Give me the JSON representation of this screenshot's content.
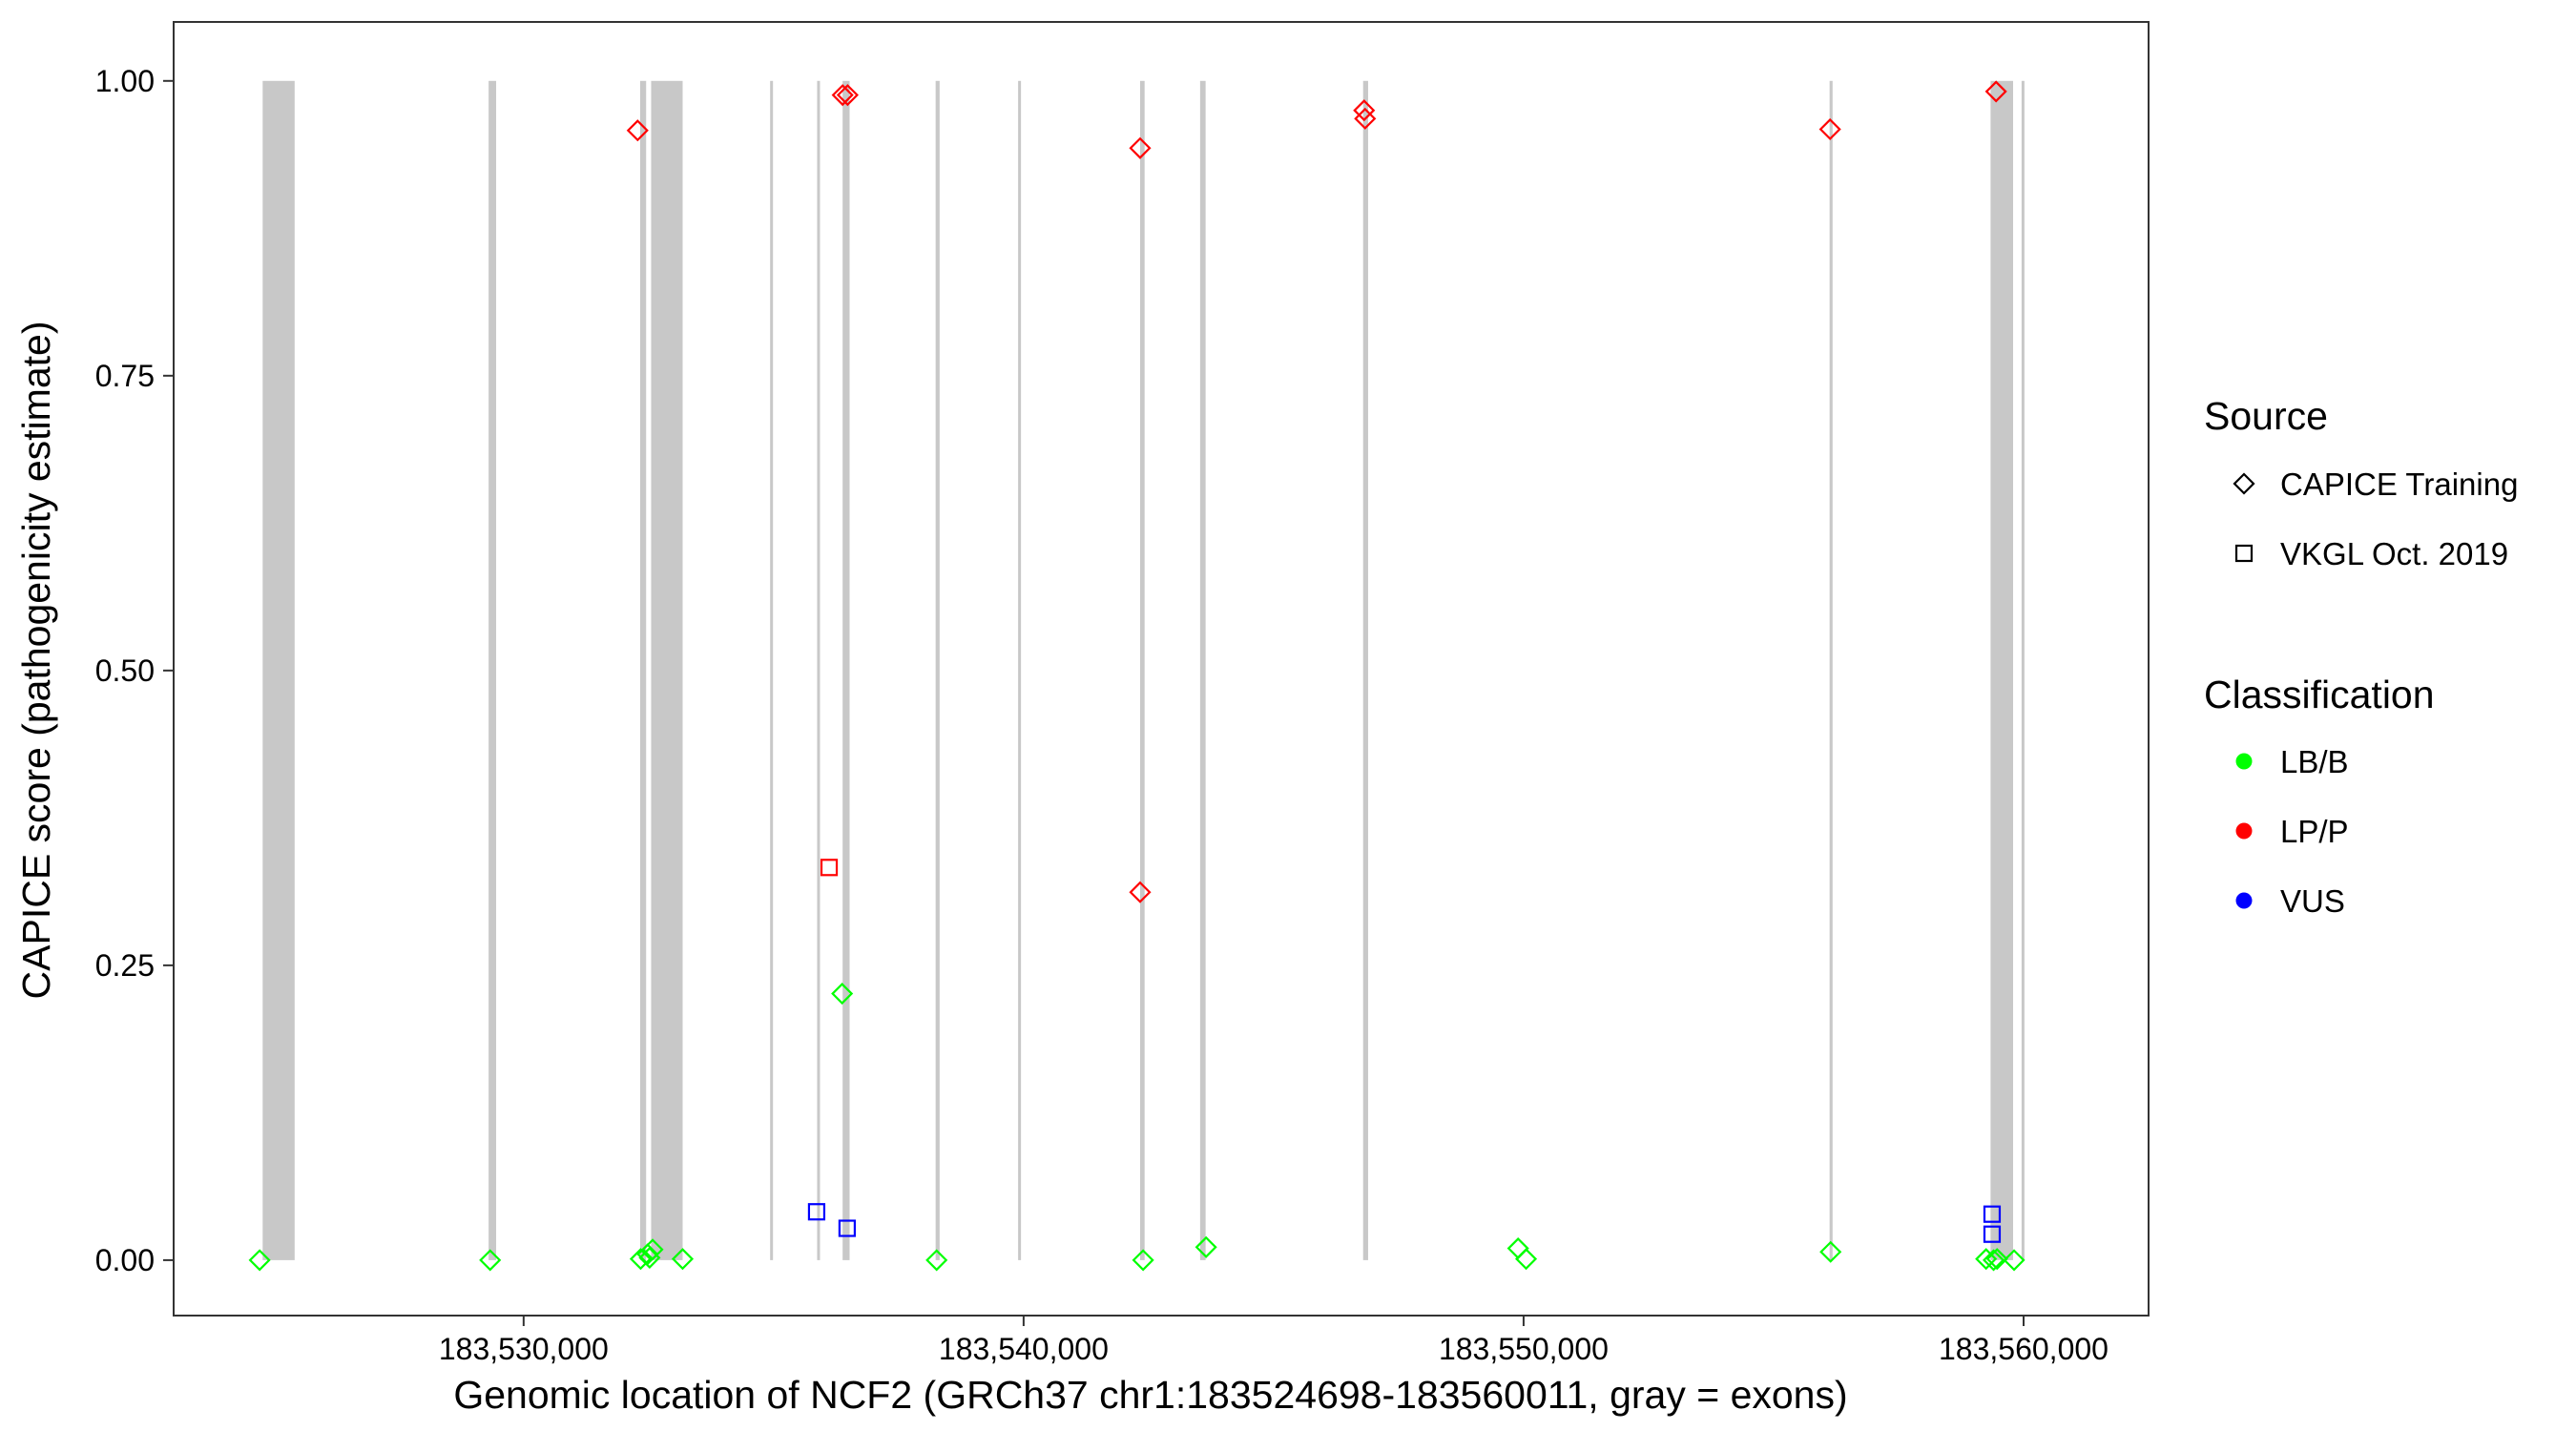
{
  "chart_data": {
    "type": "scatter",
    "title": "",
    "xlabel": "Genomic location of NCF2 (GRCh37 chr1:183524698-183560011, gray = exons)",
    "ylabel": "CAPICE score (pathogenicity estimate)",
    "xlim": [
      183523000,
      183562500
    ],
    "ylim": [
      -0.047,
      1.05
    ],
    "x_ticks": [
      183530000,
      183540000,
      183550000,
      183560000
    ],
    "x_tick_labels": [
      "183,530,000",
      "183,540,000",
      "183,550,000",
      "183,560,000"
    ],
    "y_ticks": [
      0,
      0.25,
      0.5,
      0.75,
      1
    ],
    "y_tick_labels": [
      "0.00",
      "0.25",
      "0.50",
      "0.75",
      "1.00"
    ],
    "grid": false,
    "exons": [
      [
        183524780,
        183525420
      ],
      [
        183529300,
        183529450
      ],
      [
        183532330,
        183532450
      ],
      [
        183532550,
        183533180
      ],
      [
        183534930,
        183534960
      ],
      [
        183535870,
        183535920
      ],
      [
        183536380,
        183536520
      ],
      [
        183538240,
        183538320
      ],
      [
        183539890,
        183539930
      ],
      [
        183542330,
        183542420
      ],
      [
        183543530,
        183543640
      ],
      [
        183546790,
        183546890
      ],
      [
        183556120,
        183556180
      ],
      [
        183559340,
        183559790
      ],
      [
        183559960,
        183560011
      ]
    ],
    "legend": {
      "placement": "right",
      "source_title": "Source",
      "source_items": [
        {
          "label": "CAPICE Training",
          "shape": "diamond"
        },
        {
          "label": "VKGL Oct. 2019",
          "shape": "square"
        }
      ],
      "class_title": "Classification",
      "class_items": [
        {
          "label": "LB/B",
          "color": "#00ff00"
        },
        {
          "label": "LP/P",
          "color": "#ff0000"
        },
        {
          "label": "VUS",
          "color": "#0000ff"
        }
      ]
    },
    "colors": {
      "LB/B": "#00ff00",
      "LP/P": "#ff0000",
      "VUS": "#0000ff",
      "exon": "#c8c8c8"
    },
    "series": [
      {
        "source": "CAPICE Training",
        "classification": "LP/P",
        "points": [
          [
            183532280,
            0.958
          ],
          [
            183536380,
            0.988
          ],
          [
            183536480,
            0.988
          ],
          [
            183542330,
            0.943
          ],
          [
            183546810,
            0.975
          ],
          [
            183546830,
            0.968
          ],
          [
            183556130,
            0.959
          ],
          [
            183559450,
            0.991
          ],
          [
            183542330,
            0.312
          ]
        ]
      },
      {
        "source": "VKGL Oct. 2019",
        "classification": "LP/P",
        "points": [
          [
            183536110,
            0.333
          ]
        ]
      },
      {
        "source": "CAPICE Training",
        "classification": "LB/B",
        "points": [
          [
            183524720,
            0.0
          ],
          [
            183529330,
            0.0
          ],
          [
            183532340,
            0.001
          ],
          [
            183532480,
            0.005
          ],
          [
            183532580,
            0.009
          ],
          [
            183532520,
            0.002
          ],
          [
            183533180,
            0.001
          ],
          [
            183536370,
            0.226
          ],
          [
            183538260,
            0.0
          ],
          [
            183542390,
            0.0
          ],
          [
            183543650,
            0.011
          ],
          [
            183549890,
            0.01
          ],
          [
            183550050,
            0.001
          ],
          [
            183556140,
            0.007
          ],
          [
            183559250,
            0.001
          ],
          [
            183559400,
            0.0
          ],
          [
            183559470,
            0.001
          ],
          [
            183559810,
            0.0
          ]
        ]
      },
      {
        "source": "VKGL Oct. 2019",
        "classification": "VUS",
        "points": [
          [
            183535860,
            0.041
          ],
          [
            183536470,
            0.027
          ],
          [
            183559370,
            0.039
          ],
          [
            183559370,
            0.022
          ]
        ]
      }
    ]
  }
}
